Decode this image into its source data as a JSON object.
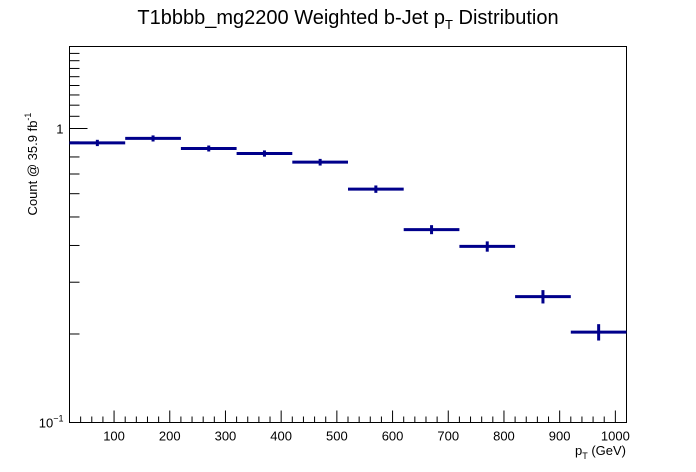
{
  "chart_data": {
    "type": "bar",
    "title_main": "T1bbbb_mg2200 Weighted b-Jet p",
    "title_sub": "T",
    "title_tail": " Distribution",
    "xlabel_main": "p",
    "xlabel_sub": "T",
    "xlabel_tail": " (GeV)",
    "ylabel_main": "Count @ 35.9 fb",
    "ylabel_sup": "-1",
    "xlim": [
      20,
      1020
    ],
    "ylim": [
      0.1,
      1.9
    ],
    "yscale": "log",
    "x_ticks": [
      100,
      200,
      300,
      400,
      500,
      600,
      700,
      800,
      900,
      1000
    ],
    "x_tick_labels": [
      "100",
      "200",
      "300",
      "400",
      "500",
      "600",
      "700",
      "800",
      "900",
      "1000"
    ],
    "y_major_ticks": [
      {
        "value": 0.1,
        "base": "10",
        "exp": "−1"
      },
      {
        "value": 1,
        "label": "1"
      }
    ],
    "grid": false,
    "line_color": "#00008b",
    "bins": [
      {
        "x0": 20,
        "x1": 120,
        "y": 0.893,
        "err": 0.022
      },
      {
        "x0": 120,
        "x1": 220,
        "y": 0.925,
        "err": 0.022
      },
      {
        "x0": 220,
        "x1": 320,
        "y": 0.855,
        "err": 0.02
      },
      {
        "x0": 320,
        "x1": 420,
        "y": 0.822,
        "err": 0.02
      },
      {
        "x0": 420,
        "x1": 520,
        "y": 0.768,
        "err": 0.02
      },
      {
        "x0": 520,
        "x1": 620,
        "y": 0.622,
        "err": 0.018
      },
      {
        "x0": 620,
        "x1": 720,
        "y": 0.453,
        "err": 0.016
      },
      {
        "x0": 720,
        "x1": 820,
        "y": 0.397,
        "err": 0.016
      },
      {
        "x0": 820,
        "x1": 920,
        "y": 0.268,
        "err": 0.014
      },
      {
        "x0": 920,
        "x1": 1020,
        "y": 0.203,
        "err": 0.013
      }
    ]
  }
}
